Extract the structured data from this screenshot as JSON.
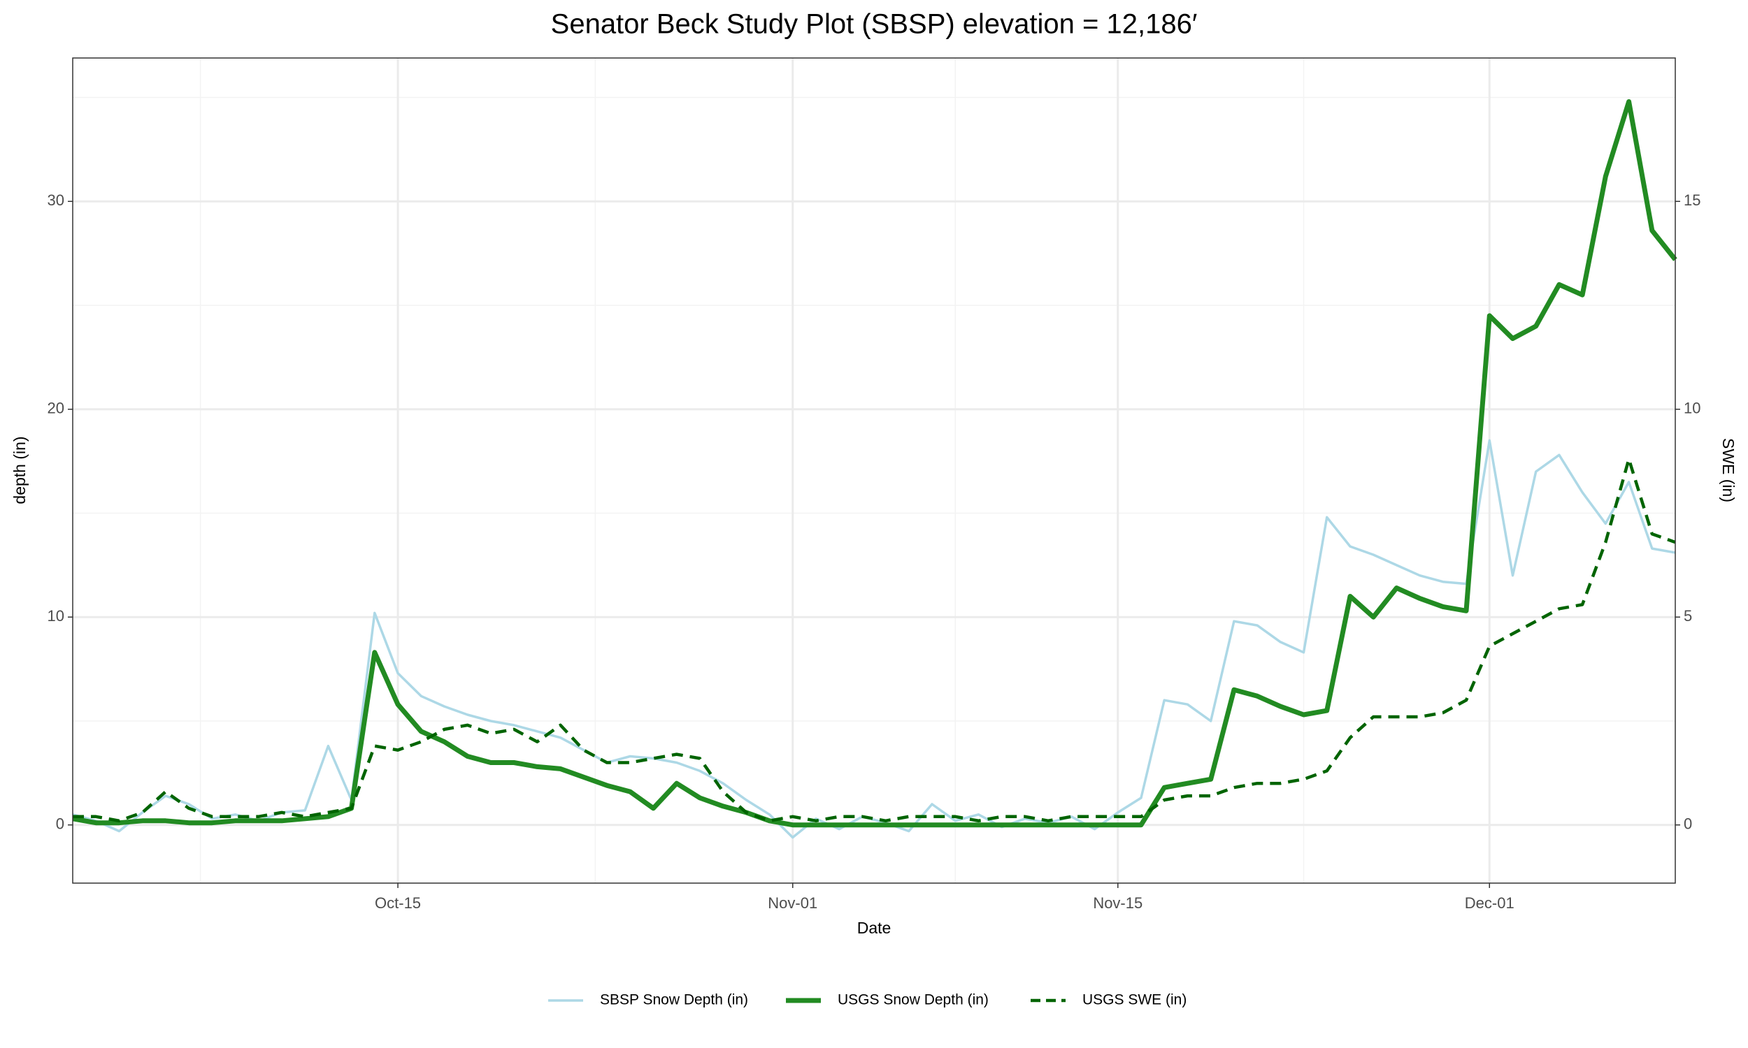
{
  "chart_data": {
    "type": "line",
    "title": "Senator Beck Study Plot (SBSP) elevation = 12,186′",
    "xlabel": "Date",
    "ylabel": "depth (in)",
    "y2label": "SWE (in)",
    "x": [
      "10-01",
      "10-02",
      "10-03",
      "10-04",
      "10-05",
      "10-06",
      "10-07",
      "10-08",
      "10-09",
      "10-10",
      "10-11",
      "10-12",
      "10-13",
      "10-14",
      "10-15",
      "10-16",
      "10-17",
      "10-18",
      "10-19",
      "10-20",
      "10-21",
      "10-22",
      "10-23",
      "10-24",
      "10-25",
      "10-26",
      "10-27",
      "10-28",
      "10-29",
      "10-30",
      "10-31",
      "11-01",
      "11-02",
      "11-03",
      "11-04",
      "11-05",
      "11-06",
      "11-07",
      "11-08",
      "11-09",
      "11-10",
      "11-11",
      "11-12",
      "11-13",
      "11-14",
      "11-15",
      "11-16",
      "11-17",
      "11-18",
      "11-19",
      "11-20",
      "11-21",
      "11-22",
      "11-23",
      "11-24",
      "11-25",
      "11-26",
      "11-27",
      "11-28",
      "11-29",
      "11-30",
      "12-01",
      "12-02",
      "12-03",
      "12-04",
      "12-05",
      "12-06",
      "12-07",
      "12-08",
      "12-09"
    ],
    "series": [
      {
        "name": "SBSP Snow Depth (in)",
        "color": "#add8e6",
        "linestyle": "solid",
        "values": [
          0.5,
          0.2,
          -0.3,
          0.6,
          1.4,
          1.0,
          0.3,
          0.5,
          0.2,
          0.6,
          0.7,
          3.8,
          1.2,
          10.2,
          7.3,
          6.2,
          5.7,
          5.3,
          5.0,
          4.8,
          4.5,
          4.2,
          3.6,
          3.0,
          3.3,
          3.2,
          3.0,
          2.6,
          2.0,
          1.2,
          0.5,
          -0.6,
          0.3,
          -0.2,
          0.4,
          0.1,
          -0.3,
          1.0,
          0.2,
          0.5,
          -0.1,
          0.3,
          0.1,
          0.4,
          -0.2,
          0.6,
          1.3,
          6.0,
          5.8,
          5.0,
          9.8,
          9.6,
          8.8,
          8.3,
          14.8,
          13.4,
          13.0,
          12.5,
          12.0,
          11.7,
          11.6,
          18.5,
          12.0,
          17.0,
          17.8,
          16.0,
          14.5,
          16.5,
          13.3,
          13.1
        ]
      },
      {
        "name": "USGS Snow Depth (in)",
        "color": "#228b22",
        "linestyle": "solid",
        "values": [
          0.3,
          0.1,
          0.1,
          0.2,
          0.2,
          0.1,
          0.1,
          0.2,
          0.2,
          0.2,
          0.3,
          0.4,
          0.8,
          8.3,
          5.8,
          4.5,
          4.0,
          3.3,
          3.0,
          3.0,
          2.8,
          2.7,
          2.3,
          1.9,
          1.6,
          0.8,
          2.0,
          1.3,
          0.9,
          0.6,
          0.2,
          0,
          0,
          0,
          0,
          0,
          0,
          0,
          0,
          0,
          0,
          0,
          0,
          0,
          0,
          0,
          0,
          1.8,
          2.0,
          2.2,
          6.5,
          6.2,
          5.7,
          5.3,
          5.5,
          11.0,
          10.0,
          11.4,
          10.9,
          10.5,
          10.3,
          24.5,
          23.4,
          24.0,
          26.0,
          25.5,
          31.2,
          34.8,
          28.6,
          27.2
        ]
      },
      {
        "name": "USGS SWE (in)",
        "color": "#006400",
        "linestyle": "dashed",
        "axis": "y2",
        "values": [
          0.2,
          0.2,
          0.1,
          0.3,
          0.8,
          0.4,
          0.2,
          0.2,
          0.2,
          0.3,
          0.2,
          0.3,
          0.4,
          1.9,
          1.8,
          2.0,
          2.3,
          2.4,
          2.2,
          2.3,
          2.0,
          2.4,
          1.8,
          1.5,
          1.5,
          1.6,
          1.7,
          1.6,
          0.8,
          0.3,
          0.1,
          0.2,
          0.1,
          0.2,
          0.2,
          0.1,
          0.2,
          0.2,
          0.2,
          0.1,
          0.2,
          0.2,
          0.1,
          0.2,
          0.2,
          0.2,
          0.2,
          0.6,
          0.7,
          0.7,
          0.9,
          1.0,
          1.0,
          1.1,
          1.3,
          2.1,
          2.6,
          2.6,
          2.6,
          2.7,
          3.0,
          4.3,
          4.6,
          4.9,
          5.2,
          5.3,
          6.8,
          8.8,
          7.0,
          6.8
        ]
      }
    ],
    "xlim": [
      "10-01",
      "12-09"
    ],
    "xticks": [
      {
        "value": "10-15",
        "label": "Oct-15"
      },
      {
        "value": "11-01",
        "label": "Nov-01"
      },
      {
        "value": "11-15",
        "label": "Nov-15"
      },
      {
        "value": "12-01",
        "label": "Dec-01"
      }
    ],
    "ylim": [
      -2.8,
      36.9
    ],
    "yticks": [
      0,
      10,
      20,
      30
    ],
    "y2lim": [
      -1.4,
      18.45
    ],
    "y2ticks": [
      0,
      5,
      10,
      15
    ],
    "grid": true,
    "minor_grid": true,
    "legend": "bottom"
  }
}
